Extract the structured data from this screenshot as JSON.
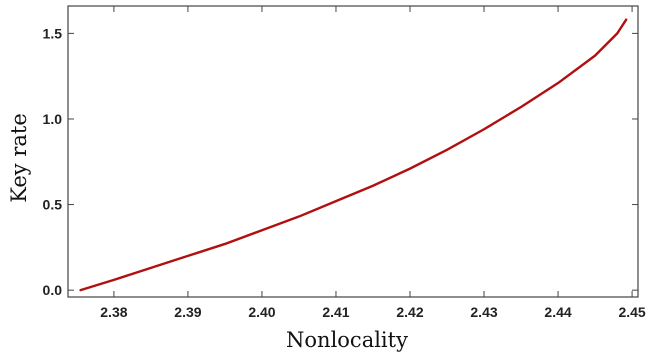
{
  "chart_data": {
    "type": "line",
    "title": "",
    "xlabel": "Nonlocality",
    "ylabel": "Key rate",
    "xlim": [
      2.3738,
      2.4508
    ],
    "ylim": [
      -0.04,
      1.66
    ],
    "xticks": [
      2.38,
      2.39,
      2.4,
      2.41,
      2.42,
      2.43,
      2.44,
      2.45
    ],
    "xtick_labels": [
      "2.38",
      "2.39",
      "2.40",
      "2.41",
      "2.42",
      "2.43",
      "2.44",
      "2.45"
    ],
    "yticks": [
      0.0,
      0.5,
      1.0,
      1.5
    ],
    "ytick_labels": [
      "0.0",
      "0.5",
      "1.0",
      "1.5"
    ],
    "grid": false,
    "series": [
      {
        "color": "#b01010",
        "x": [
          2.3755,
          2.38,
          2.385,
          2.39,
          2.395,
          2.4,
          2.405,
          2.41,
          2.415,
          2.42,
          2.425,
          2.43,
          2.435,
          2.44,
          2.445,
          2.448,
          2.4492
        ],
        "y": [
          0.0,
          0.06,
          0.13,
          0.2,
          0.27,
          0.35,
          0.43,
          0.52,
          0.61,
          0.71,
          0.82,
          0.94,
          1.07,
          1.21,
          1.37,
          1.5,
          1.58
        ]
      }
    ]
  }
}
